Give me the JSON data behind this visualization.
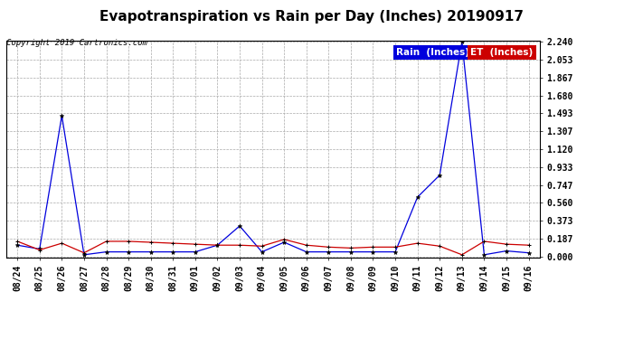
{
  "title": "Evapotranspiration vs Rain per Day (Inches) 20190917",
  "copyright": "Copyright 2019 Cartronics.com",
  "legend_rain": "Rain  (Inches)",
  "legend_et": "ET  (Inches)",
  "x_labels": [
    "08/24",
    "08/25",
    "08/26",
    "08/27",
    "08/28",
    "08/29",
    "08/30",
    "08/31",
    "09/01",
    "09/02",
    "09/03",
    "09/04",
    "09/05",
    "09/06",
    "09/07",
    "09/08",
    "09/09",
    "09/10",
    "09/11",
    "09/12",
    "09/13",
    "09/14",
    "09/15",
    "09/16"
  ],
  "rain_values": [
    0.12,
    0.08,
    1.47,
    0.02,
    0.05,
    0.05,
    0.05,
    0.05,
    0.05,
    0.12,
    0.32,
    0.05,
    0.15,
    0.05,
    0.05,
    0.05,
    0.05,
    0.05,
    0.62,
    0.85,
    2.24,
    0.02,
    0.06,
    0.04
  ],
  "et_values": [
    0.16,
    0.07,
    0.14,
    0.04,
    0.16,
    0.16,
    0.15,
    0.14,
    0.13,
    0.12,
    0.12,
    0.11,
    0.18,
    0.12,
    0.1,
    0.09,
    0.1,
    0.1,
    0.14,
    0.11,
    0.02,
    0.16,
    0.13,
    0.12
  ],
  "rain_color": "#0000dd",
  "et_color": "#cc0000",
  "bg_color": "#ffffff",
  "grid_color": "#aaaaaa",
  "ylim_min": 0.0,
  "ylim_max": 2.24,
  "yticks": [
    0.0,
    0.187,
    0.373,
    0.56,
    0.747,
    0.933,
    1.12,
    1.307,
    1.493,
    1.68,
    1.867,
    2.053,
    2.24
  ],
  "title_fontsize": 11,
  "copyright_fontsize": 6.5,
  "legend_fontsize": 7.5,
  "tick_fontsize": 7
}
